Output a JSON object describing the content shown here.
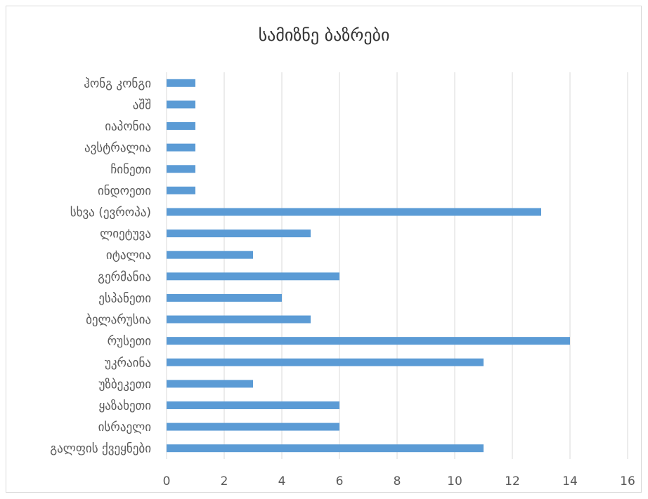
{
  "chart_data": {
    "type": "bar",
    "orientation": "horizontal",
    "title": "სამიზნე ბაზრები",
    "categories": [
      "ჰონგ კონგი",
      "აშშ",
      "იაპონია",
      "ავსტრალია",
      "ჩინეთი",
      "ინდოეთი",
      "სხვა (ევროპა)",
      "ლიეტუვა",
      "იტალია",
      "გერმანია",
      "ესპანეთი",
      "ბელარუსია",
      "რუსეთი",
      "უკრაინა",
      "უზბეკეთი",
      "ყაზახეთი",
      "ისრაელი",
      "გალფის ქვეყნები"
    ],
    "values": [
      1,
      1,
      1,
      1,
      1,
      1,
      13,
      5,
      3,
      6,
      4,
      5,
      14,
      11,
      3,
      6,
      6,
      11
    ],
    "xlim": [
      0,
      16
    ],
    "xticks": [
      "0",
      "2",
      "4",
      "6",
      "8",
      "10",
      "12",
      "14",
      "16"
    ],
    "grid": true,
    "bar_color": "#5b9bd5",
    "grid_color": "#d9d9d9",
    "legend": "none"
  }
}
